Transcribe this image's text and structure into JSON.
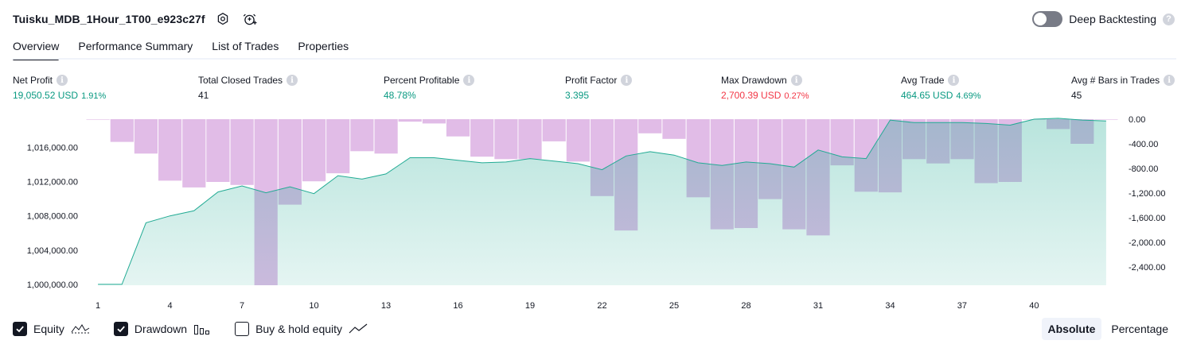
{
  "header": {
    "strategy_name": "Tuisku_MDB_1Hour_1T00_e923c27f",
    "settings_icon": "gear-icon",
    "alert_icon": "alarm-clock-plus-icon"
  },
  "deep_backtesting": {
    "label": "Deep Backtesting",
    "enabled": false,
    "help": "?"
  },
  "tabs": [
    {
      "label": "Overview",
      "active": true
    },
    {
      "label": "Performance Summary",
      "active": false
    },
    {
      "label": "List of Trades",
      "active": false
    },
    {
      "label": "Properties",
      "active": false
    }
  ],
  "metrics": [
    {
      "label": "Net Profit",
      "value": "19,050.52 USD",
      "pct": "1.91%",
      "color": "#089981"
    },
    {
      "label": "Total Closed Trades",
      "value": "41",
      "pct": "",
      "color": "#131722"
    },
    {
      "label": "Percent Profitable",
      "value": "48.78%",
      "pct": "",
      "color": "#089981"
    },
    {
      "label": "Profit Factor",
      "value": "3.395",
      "pct": "",
      "color": "#089981"
    },
    {
      "label": "Max Drawdown",
      "value": "2,700.39 USD",
      "pct": "0.27%",
      "color": "#f23645"
    },
    {
      "label": "Avg Trade",
      "value": "464.65 USD",
      "pct": "4.69%",
      "color": "#089981"
    },
    {
      "label": "Avg # Bars in Trades",
      "value": "45",
      "pct": "",
      "color": "#131722"
    }
  ],
  "chart_data": {
    "type": "area",
    "x_ticks": [
      1,
      4,
      7,
      10,
      13,
      16,
      19,
      22,
      25,
      28,
      31,
      34,
      37,
      40
    ],
    "left_axis": {
      "ticks": [
        "1,000,000.00",
        "1,004,000.00",
        "1,008,000.00",
        "1,012,000.00",
        "1,016,000.00"
      ],
      "values": [
        1000000,
        1004000,
        1008000,
        1012000,
        1016000
      ],
      "range": [
        999900,
        1019300
      ]
    },
    "right_axis": {
      "ticks": [
        "0.00",
        "-400.00",
        "-800.00",
        "-1,200.00",
        "-1,600.00",
        "-2,000.00",
        "-2,400.00"
      ],
      "values": [
        0,
        -400,
        -800,
        -1200,
        -1600,
        -2000,
        -2400
      ],
      "range": [
        -2700,
        0
      ]
    },
    "series": [
      {
        "name": "Equity",
        "color": "#22ab94",
        "x": [
          1,
          2,
          3,
          4,
          5,
          6,
          7,
          8,
          9,
          10,
          11,
          12,
          13,
          14,
          15,
          16,
          17,
          18,
          19,
          20,
          21,
          22,
          23,
          24,
          25,
          26,
          27,
          28,
          29,
          30,
          31,
          32,
          33,
          34,
          35,
          36,
          37,
          38,
          39,
          40,
          41,
          42,
          43
        ],
        "values": [
          1000000,
          1000000,
          1007200,
          1008000,
          1008600,
          1010800,
          1011500,
          1010700,
          1011400,
          1010600,
          1012700,
          1012300,
          1012900,
          1014800,
          1014800,
          1014500,
          1014200,
          1014300,
          1014700,
          1014400,
          1014100,
          1013400,
          1015000,
          1015500,
          1015100,
          1014200,
          1013900,
          1014300,
          1014100,
          1013700,
          1015700,
          1014900,
          1014700,
          1019200,
          1018900,
          1018900,
          1018900,
          1018800,
          1018600,
          1019300,
          1019400,
          1019200,
          1019100
        ]
      },
      {
        "name": "Drawdown",
        "color": "#ce93d8",
        "x": [
          1,
          2,
          3,
          4,
          5,
          6,
          7,
          8,
          9,
          10,
          11,
          12,
          13,
          14,
          15,
          16,
          17,
          18,
          19,
          20,
          21,
          22,
          23,
          24,
          25,
          26,
          27,
          28,
          29,
          30,
          31,
          32,
          33,
          34,
          35,
          36,
          37,
          38,
          39,
          40,
          41,
          42,
          43
        ],
        "values": [
          0,
          -370,
          -560,
          -1000,
          -1110,
          -1020,
          -1070,
          -2700,
          -1390,
          -1010,
          -880,
          -520,
          -560,
          -40,
          -70,
          -280,
          -610,
          -650,
          -650,
          -360,
          -690,
          -1250,
          -1810,
          -230,
          -320,
          -1270,
          -1790,
          -1770,
          -1300,
          -1790,
          -1890,
          -750,
          -1180,
          -1190,
          -650,
          -720,
          -650,
          -1040,
          -1020,
          0,
          -160,
          -400,
          0
        ]
      }
    ]
  },
  "legend": [
    {
      "label": "Equity",
      "checked": true,
      "icon": "equity-line-icon"
    },
    {
      "label": "Drawdown",
      "checked": true,
      "icon": "drawdown-bars-icon"
    },
    {
      "label": "Buy & hold equity",
      "checked": false,
      "icon": "buy-hold-line-icon"
    }
  ],
  "modes": [
    {
      "label": "Absolute",
      "active": true
    },
    {
      "label": "Percentage",
      "active": false
    }
  ]
}
